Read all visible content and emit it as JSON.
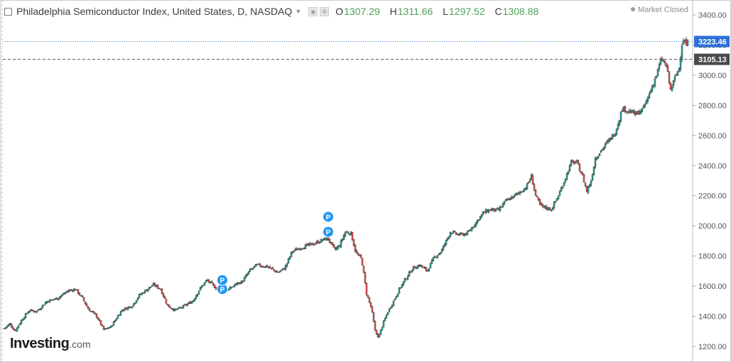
{
  "header": {
    "title": "Philadelphia Semiconductor Index, United States, D, NASDAQ",
    "ohlc": [
      {
        "key": "O",
        "value": "1307.29"
      },
      {
        "key": "H",
        "value": "1311.66"
      },
      {
        "key": "L",
        "value": "1297.52"
      },
      {
        "key": "C",
        "value": "1308.88"
      }
    ],
    "status": "Market Closed"
  },
  "logo": {
    "text": "Investing",
    "suffix": ".com"
  },
  "colors": {
    "up": "#26a69a",
    "down": "#ef5350",
    "grid": "#eeeeee",
    "price_line": "#2f6fd6",
    "marker": "#2196f3",
    "dark_label": "#4a4a4a"
  },
  "chart_data": {
    "type": "candlestick",
    "title": "Philadelphia Semiconductor Index, United States, D, NASDAQ",
    "xlabel": "",
    "ylabel": "",
    "ylim": [
      1150,
      3450
    ],
    "y_ticks": [
      1200,
      1400,
      1600,
      1800,
      2000,
      2200,
      2400,
      2600,
      2800,
      3000,
      3200,
      3400
    ],
    "grid": false,
    "price_lines": [
      {
        "value": 3223.46,
        "label": "3223.46",
        "style": "dotted-blue"
      },
      {
        "value": 3105.13,
        "label": "3105.13",
        "style": "dashed-dark"
      }
    ],
    "anchors": [
      [
        0,
        1320
      ],
      [
        8,
        1350
      ],
      [
        15,
        1300
      ],
      [
        25,
        1380
      ],
      [
        35,
        1440
      ],
      [
        45,
        1430
      ],
      [
        60,
        1500
      ],
      [
        75,
        1520
      ],
      [
        90,
        1570
      ],
      [
        100,
        1580
      ],
      [
        110,
        1520
      ],
      [
        118,
        1450
      ],
      [
        130,
        1400
      ],
      [
        140,
        1310
      ],
      [
        150,
        1330
      ],
      [
        165,
        1440
      ],
      [
        180,
        1470
      ],
      [
        190,
        1540
      ],
      [
        210,
        1610
      ],
      [
        220,
        1580
      ],
      [
        230,
        1470
      ],
      [
        240,
        1440
      ],
      [
        250,
        1460
      ],
      [
        265,
        1500
      ],
      [
        275,
        1580
      ],
      [
        285,
        1640
      ],
      [
        295,
        1600
      ],
      [
        305,
        1560
      ],
      [
        315,
        1575
      ],
      [
        325,
        1610
      ],
      [
        335,
        1630
      ],
      [
        345,
        1700
      ],
      [
        355,
        1740
      ],
      [
        370,
        1730
      ],
      [
        385,
        1690
      ],
      [
        395,
        1720
      ],
      [
        405,
        1830
      ],
      [
        420,
        1860
      ],
      [
        435,
        1880
      ],
      [
        445,
        1900
      ],
      [
        455,
        1920
      ],
      [
        465,
        1840
      ],
      [
        472,
        1870
      ],
      [
        480,
        1960
      ],
      [
        488,
        1950
      ],
      [
        495,
        1820
      ],
      [
        503,
        1780
      ],
      [
        510,
        1550
      ],
      [
        517,
        1450
      ],
      [
        522,
        1300
      ],
      [
        527,
        1260
      ],
      [
        533,
        1350
      ],
      [
        540,
        1430
      ],
      [
        548,
        1500
      ],
      [
        556,
        1580
      ],
      [
        565,
        1650
      ],
      [
        575,
        1720
      ],
      [
        585,
        1740
      ],
      [
        595,
        1700
      ],
      [
        605,
        1790
      ],
      [
        615,
        1830
      ],
      [
        628,
        1960
      ],
      [
        640,
        1940
      ],
      [
        652,
        1950
      ],
      [
        665,
        2030
      ],
      [
        675,
        2090
      ],
      [
        685,
        2110
      ],
      [
        695,
        2100
      ],
      [
        705,
        2160
      ],
      [
        715,
        2190
      ],
      [
        725,
        2220
      ],
      [
        735,
        2260
      ],
      [
        742,
        2330
      ],
      [
        748,
        2200
      ],
      [
        755,
        2130
      ],
      [
        762,
        2120
      ],
      [
        770,
        2110
      ],
      [
        780,
        2200
      ],
      [
        790,
        2320
      ],
      [
        798,
        2420
      ],
      [
        806,
        2420
      ],
      [
        814,
        2330
      ],
      [
        820,
        2230
      ],
      [
        826,
        2300
      ],
      [
        832,
        2450
      ],
      [
        840,
        2500
      ],
      [
        850,
        2560
      ],
      [
        860,
        2620
      ],
      [
        870,
        2780
      ],
      [
        880,
        2760
      ],
      [
        890,
        2740
      ],
      [
        900,
        2780
      ],
      [
        910,
        2900
      ],
      [
        918,
        3000
      ],
      [
        925,
        3110
      ],
      [
        932,
        3060
      ],
      [
        938,
        2900
      ],
      [
        944,
        2980
      ],
      [
        950,
        3050
      ],
      [
        955,
        3250
      ],
      [
        960,
        3200
      ],
      [
        963,
        3223.46
      ]
    ],
    "markers": [
      {
        "x": 308,
        "value": 1580,
        "label": "P"
      },
      {
        "x": 308,
        "value": 1640,
        "label": "P"
      },
      {
        "x": 457,
        "value": 1960,
        "label": "P"
      },
      {
        "x": 457,
        "value": 2060,
        "label": "P"
      }
    ]
  }
}
